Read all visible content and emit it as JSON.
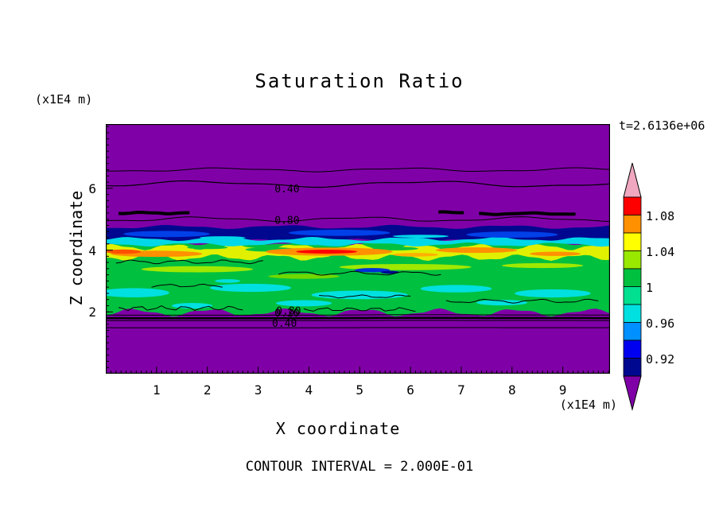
{
  "chart_data": {
    "type": "heatmap",
    "title": "Saturation Ratio",
    "xlabel": "X coordinate",
    "ylabel": "Z coordinate",
    "x_unit": "(x1E4 m)",
    "y_unit": "(x1E4 m)",
    "time_annotation": "t=2.6136e+06",
    "contour_interval_text": "CONTOUR INTERVAL = 2.000E-01",
    "xlim": [
      0,
      9.93
    ],
    "zlim": [
      0,
      8.08
    ],
    "x_ticks": [
      1,
      2,
      3,
      4,
      5,
      6,
      7,
      8,
      9
    ],
    "z_ticks": [
      2,
      4,
      6
    ],
    "x_minor_step": 0.1,
    "z_minor_step": 0.2,
    "background_value_color": "#8000A8",
    "colorbar": {
      "levels": [
        "1.08",
        "1.04",
        "1",
        "0.96",
        "0.92"
      ],
      "segment_colors": [
        "#FF0000",
        "#FF9000",
        "#FFFF00",
        "#98E800",
        "#00C040",
        "#00E090",
        "#00E0E0",
        "#0090FF",
        "#0000F0",
        "#000890"
      ],
      "top_color": "#F0A8C0",
      "bottom_color": "#8000A8"
    },
    "contour_labels": [
      {
        "text": "0.40",
        "x": 3.57,
        "z": 5.97
      },
      {
        "text": "0.80",
        "x": 3.57,
        "z": 4.95
      },
      {
        "text": "0.80",
        "x": 3.6,
        "z": 2.02
      },
      {
        "text": "0.20",
        "x": 3.57,
        "z": 1.95
      },
      {
        "text": "0.40",
        "x": 3.52,
        "z": 1.62
      }
    ],
    "bands": [
      {
        "name": "green-main",
        "z_top": 4.24,
        "z_bottom": 1.98,
        "amp_top": 0.06,
        "amp_bottom": 0.1,
        "lambda": 1.5,
        "phase": 0.3,
        "color": "#00C040"
      },
      {
        "name": "yellow-band",
        "z_top": 4.1,
        "z_bottom": 3.76,
        "amp": 0.08,
        "lambda": 1.2,
        "phase": 4.0,
        "color": "#E0F000"
      },
      {
        "name": "navy-band",
        "z_top": 4.75,
        "z_bottom": 4.3,
        "amp": 0.05,
        "lambda": 2.2,
        "phase": 1.0,
        "color": "#000890"
      },
      {
        "name": "cyan-strip",
        "z_top": 4.36,
        "z_bottom": 4.18,
        "amp": 0.05,
        "lambda": 1.8,
        "phase": 3.0,
        "color": "#00D8E8"
      }
    ],
    "patches": [
      {
        "x": 1.2,
        "z": 4.52,
        "rx": 0.85,
        "rz": 0.1,
        "color": "#0040E8"
      },
      {
        "x": 4.6,
        "z": 4.56,
        "rx": 1.0,
        "rz": 0.1,
        "color": "#0040E8"
      },
      {
        "x": 8.0,
        "z": 4.5,
        "rx": 0.9,
        "rz": 0.1,
        "color": "#0040E8"
      },
      {
        "x": 2.3,
        "z": 4.4,
        "rx": 0.45,
        "rz": 0.05,
        "color": "#00D8E8"
      },
      {
        "x": 6.2,
        "z": 4.45,
        "rx": 0.55,
        "rz": 0.05,
        "color": "#00D8E8"
      },
      {
        "x": 3.25,
        "z": 4.02,
        "rx": 0.5,
        "rz": 0.07,
        "color": "#00C040"
      },
      {
        "x": 5.7,
        "z": 4.05,
        "rx": 0.45,
        "rz": 0.06,
        "color": "#00C040"
      },
      {
        "x": 2.0,
        "z": 4.08,
        "rx": 0.4,
        "rz": 0.05,
        "color": "#00C040"
      },
      {
        "x": 4.4,
        "z": 3.95,
        "rx": 1.25,
        "rz": 0.13,
        "color": "#FF9000"
      },
      {
        "x": 4.35,
        "z": 3.95,
        "rx": 0.6,
        "rz": 0.065,
        "color": "#FF0000"
      },
      {
        "x": 1.0,
        "z": 3.88,
        "rx": 0.9,
        "rz": 0.1,
        "color": "#FF9000"
      },
      {
        "x": 0.35,
        "z": 3.95,
        "rx": 0.35,
        "rz": 0.07,
        "color": "#FF5000"
      },
      {
        "x": 7.3,
        "z": 4.0,
        "rx": 0.8,
        "rz": 0.09,
        "color": "#FF9000"
      },
      {
        "x": 8.85,
        "z": 3.88,
        "rx": 0.5,
        "rz": 0.07,
        "color": "#FF9000"
      },
      {
        "x": 6.1,
        "z": 3.85,
        "rx": 0.45,
        "rz": 0.06,
        "color": "#FFB000"
      },
      {
        "x": 1.8,
        "z": 3.38,
        "rx": 1.1,
        "rz": 0.1,
        "color": "#A0E800"
      },
      {
        "x": 5.9,
        "z": 3.45,
        "rx": 1.3,
        "rz": 0.1,
        "color": "#A0E800"
      },
      {
        "x": 8.6,
        "z": 3.5,
        "rx": 0.8,
        "rz": 0.08,
        "color": "#A0E800"
      },
      {
        "x": 3.9,
        "z": 3.15,
        "rx": 0.7,
        "rz": 0.08,
        "color": "#70D800"
      },
      {
        "x": 5.25,
        "z": 3.35,
        "rx": 0.35,
        "rz": 0.07,
        "color": "#0030D8"
      },
      {
        "x": 5.6,
        "z": 3.28,
        "rx": 0.18,
        "rz": 0.05,
        "color": "#000890"
      },
      {
        "x": 2.4,
        "z": 3.0,
        "rx": 0.25,
        "rz": 0.06,
        "color": "#00E0E0"
      },
      {
        "x": 0.55,
        "z": 2.62,
        "rx": 0.7,
        "rz": 0.15,
        "color": "#00E0E0"
      },
      {
        "x": 2.85,
        "z": 2.78,
        "rx": 0.8,
        "rz": 0.13,
        "color": "#00E0E0"
      },
      {
        "x": 5.0,
        "z": 2.55,
        "rx": 0.95,
        "rz": 0.14,
        "color": "#00E0E0"
      },
      {
        "x": 6.9,
        "z": 2.75,
        "rx": 0.7,
        "rz": 0.12,
        "color": "#00E0E0"
      },
      {
        "x": 8.8,
        "z": 2.6,
        "rx": 0.75,
        "rz": 0.13,
        "color": "#00E0E0"
      },
      {
        "x": 3.9,
        "z": 2.28,
        "rx": 0.55,
        "rz": 0.1,
        "color": "#00E0E0"
      },
      {
        "x": 7.8,
        "z": 2.3,
        "rx": 0.5,
        "rz": 0.09,
        "color": "#00E0E0"
      },
      {
        "x": 1.7,
        "z": 2.2,
        "rx": 0.4,
        "rz": 0.09,
        "color": "#00E0E0"
      }
    ],
    "contour_lines": [
      {
        "z": 6.6,
        "amp": 0.05,
        "lambda": 3.5,
        "phase": 0.5,
        "width": 1
      },
      {
        "z": 6.14,
        "amp": 0.08,
        "lambda": 4.5,
        "phase": 2.2,
        "width": 1.2
      },
      {
        "z": 5.0,
        "amp": 0.06,
        "lambda": 3.2,
        "phase": 1.1,
        "width": 1
      },
      {
        "z": 5.2,
        "x0": 0.25,
        "x1": 1.65,
        "amp": 0.02,
        "lambda": 1.0,
        "phase": 0.2,
        "width": 4
      },
      {
        "z": 5.22,
        "x0": 6.55,
        "x1": 7.05,
        "amp": 0.015,
        "lambda": 1.0,
        "phase": 1.0,
        "width": 4
      },
      {
        "z": 5.18,
        "x0": 7.35,
        "x1": 9.25,
        "amp": 0.02,
        "lambda": 1.3,
        "phase": 2.0,
        "width": 4
      },
      {
        "z": 3.62,
        "x0": 0.2,
        "x1": 3.1,
        "amp": 0.05,
        "lambda": 0.9,
        "phase": 1.0,
        "width": 1
      },
      {
        "z": 3.25,
        "x0": 3.4,
        "x1": 6.6,
        "amp": 0.05,
        "lambda": 1.1,
        "phase": 2.0,
        "width": 1
      },
      {
        "z": 2.85,
        "x0": 0.9,
        "x1": 2.3,
        "amp": 0.04,
        "lambda": 0.7,
        "phase": 0.0,
        "width": 1
      },
      {
        "z": 2.5,
        "x0": 4.2,
        "x1": 6.0,
        "amp": 0.04,
        "lambda": 0.8,
        "phase": 3.0,
        "width": 1
      },
      {
        "z": 2.35,
        "x0": 6.7,
        "x1": 9.7,
        "amp": 0.05,
        "lambda": 1.0,
        "phase": 1.4,
        "width": 1
      },
      {
        "z": 2.12,
        "x0": 0.25,
        "x1": 2.7,
        "amp": 0.06,
        "lambda": 0.45,
        "phase": 2.0,
        "width": 1
      },
      {
        "z": 2.08,
        "x0": 3.9,
        "x1": 6.1,
        "amp": 0.05,
        "lambda": 0.5,
        "phase": 0.8,
        "width": 1
      },
      {
        "z": 1.9,
        "amp": 0.008,
        "lambda": 9,
        "phase": 0,
        "width": 1
      },
      {
        "z": 1.8,
        "amp": 0.004,
        "lambda": 9,
        "phase": 0,
        "width": 2.5
      },
      {
        "z": 1.72,
        "amp": 0.003,
        "lambda": 9,
        "phase": 0,
        "width": 1
      },
      {
        "z": 1.49,
        "amp": 0.003,
        "lambda": 9,
        "phase": 0,
        "width": 1
      }
    ]
  }
}
